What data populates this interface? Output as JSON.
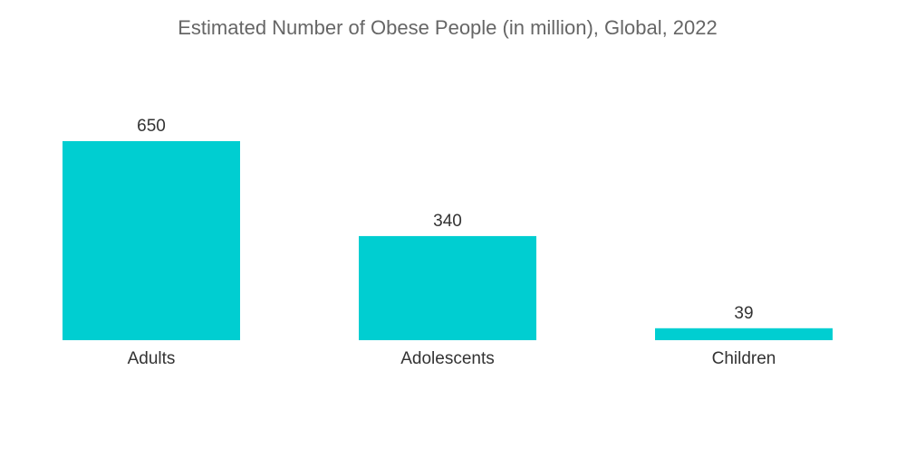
{
  "chart_data": {
    "type": "bar",
    "title": "Estimated Number of Obese People (in million), Global, 2022",
    "categories": [
      "Adults",
      "Adolescents",
      "Children"
    ],
    "values": [
      650,
      340,
      39
    ],
    "data_labels": [
      "650",
      "340",
      "39"
    ],
    "xlabel": "",
    "ylabel": "",
    "ylim": [
      0,
      650
    ],
    "grid": false,
    "legend": "none",
    "bar_color": "#00ced1"
  }
}
